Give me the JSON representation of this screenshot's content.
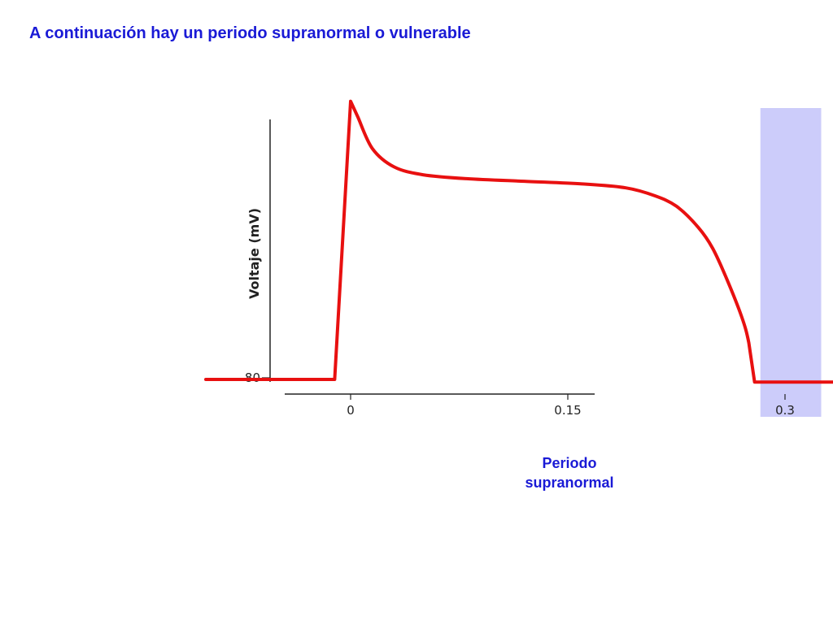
{
  "slide": {
    "title": "A continuación hay un periodo supranormal o vulnerable"
  },
  "colors": {
    "title": "#1a1ad6",
    "trace": "#e81010",
    "highlight": "#ccccfa",
    "axis": "#222222",
    "region_label": "#1a1ad6"
  },
  "chart_data": {
    "type": "line",
    "ylabel": "Voltaje (mV)",
    "xlabel": "",
    "x_ticks": [
      {
        "value": 0,
        "label": "0"
      },
      {
        "value": 0.15,
        "label": "0.15"
      },
      {
        "value": 0.3,
        "label": "0.3"
      }
    ],
    "y_ticks": [
      {
        "value": -80,
        "label": "-80"
      }
    ],
    "xlim": [
      -0.1,
      0.35
    ],
    "ylim": [
      -80,
      30
    ],
    "series": [
      {
        "x": [
          -0.1,
          -0.011,
          0.0,
          0.005,
          0.015,
          0.03,
          0.05,
          0.08,
          0.12,
          0.16,
          0.19,
          0.21,
          0.225,
          0.24,
          0.25,
          0.26,
          0.27,
          0.275,
          0.279,
          0.3,
          0.34
        ],
        "y": [
          -80,
          -80,
          26,
          20,
          8,
          1,
          -2,
          -3.5,
          -4.5,
          -5.5,
          -7,
          -10,
          -14,
          -22,
          -30,
          -42,
          -56,
          -66,
          -81,
          -81,
          -81
        ]
      }
    ],
    "highlight_region": {
      "x_range": [
        0.283,
        0.325
      ]
    }
  },
  "labels": {
    "region_line1": "Periodo",
    "region_line2": "supranormal"
  }
}
